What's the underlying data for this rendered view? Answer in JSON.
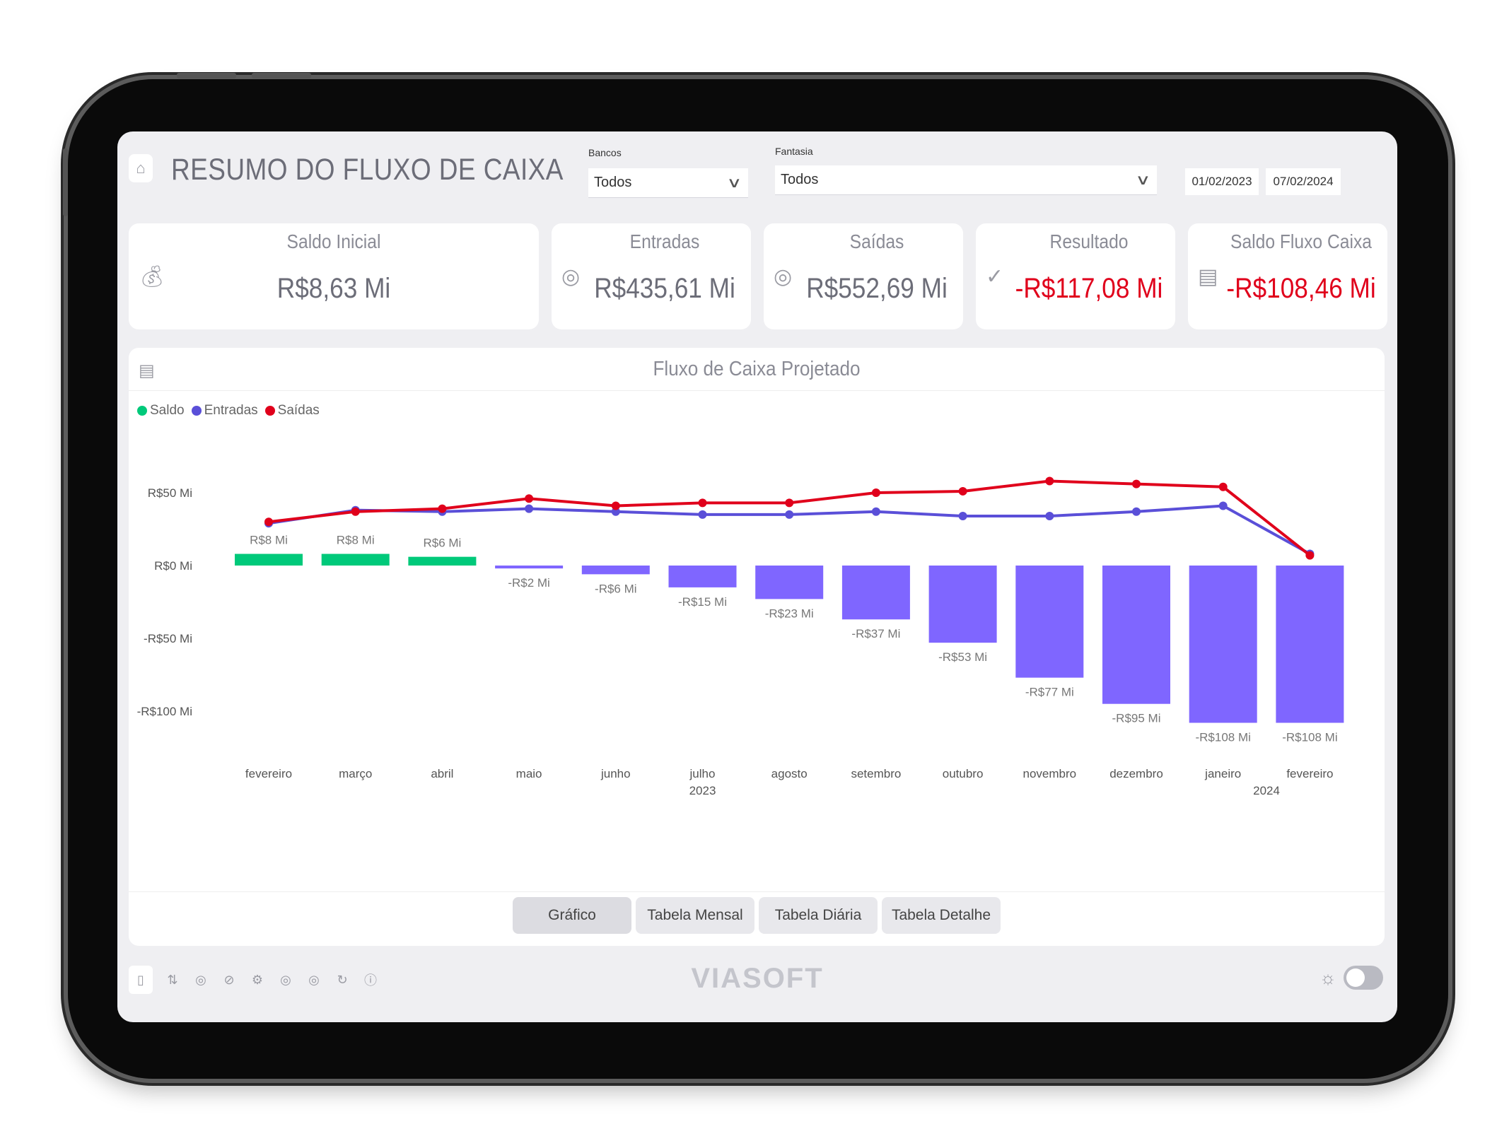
{
  "header": {
    "title": "RESUMO DO FLUXO DE CAIXA",
    "filters": {
      "bancos_label": "Bancos",
      "bancos_value": "Todos",
      "fantasia_label": "Fantasia",
      "fantasia_value": "Todos",
      "date_start": "01/02/2023",
      "date_end": "07/02/2024"
    }
  },
  "kpis": [
    {
      "title": "Saldo Inicial",
      "value": "R$8,63 Mi",
      "icon": "money-bag-icon"
    },
    {
      "title": "Entradas",
      "value": "R$435,61 Mi",
      "icon": "coins-in-icon"
    },
    {
      "title": "Saídas",
      "value": "R$552,69 Mi",
      "icon": "coins-out-icon"
    },
    {
      "title": "Resultado",
      "value": "-R$117,08 Mi",
      "icon": "check-circle-icon"
    },
    {
      "title": "Saldo Fluxo Caixa",
      "value": "-R$108,46 Mi",
      "icon": "safe-icon"
    }
  ],
  "chart": {
    "title": "Fluxo de Caixa Projetado",
    "legend": [
      "Saldo",
      "Entradas",
      "Saídas"
    ],
    "colors": {
      "saldo_pos": "#00c97a",
      "saldo_neg": "#7f66ff",
      "entradas": "#5a4fd8",
      "saidas": "#e0001b"
    },
    "y_tick_labels": [
      "R$50 Mi",
      "R$0 Mi",
      "-R$50 Mi",
      "-R$100 Mi"
    ],
    "year_labels": [
      "2023",
      "2024"
    ]
  },
  "chart_data": {
    "type": "bar",
    "categories": [
      "fevereiro",
      "março",
      "abril",
      "maio",
      "junho",
      "julho",
      "agosto",
      "setembro",
      "outubro",
      "novembro",
      "dezembro",
      "janeiro",
      "fevereiro"
    ],
    "ylim": [
      -120,
      60
    ],
    "y_ticks": [
      50,
      0,
      -50,
      -100
    ],
    "series": [
      {
        "name": "Saldo",
        "type": "bar",
        "values": [
          8,
          8,
          6,
          -2,
          -6,
          -15,
          -23,
          -37,
          -53,
          -77,
          -95,
          -108,
          -108
        ],
        "labels": [
          "R$8 Mi",
          "R$8 Mi",
          "R$6 Mi",
          "-R$2 Mi",
          "-R$6 Mi",
          "-R$15 Mi",
          "-R$23 Mi",
          "-R$37 Mi",
          "-R$53 Mi",
          "-R$77 Mi",
          "-R$95 Mi",
          "-R$108 Mi",
          "-R$108 Mi"
        ]
      },
      {
        "name": "Entradas",
        "type": "line",
        "values": [
          29,
          38,
          37,
          39,
          37,
          35,
          35,
          37,
          34,
          34,
          37,
          41,
          8
        ]
      },
      {
        "name": "Saídas",
        "type": "line",
        "values": [
          30,
          37,
          39,
          46,
          41,
          43,
          43,
          50,
          51,
          58,
          56,
          54,
          7
        ]
      }
    ]
  },
  "tabs": [
    {
      "label": "Gráfico",
      "active": true
    },
    {
      "label": "Tabela Mensal"
    },
    {
      "label": "Tabela Diária"
    },
    {
      "label": "Tabela Detalhe"
    }
  ],
  "footer": {
    "logo": "VIASOFT",
    "nav_icons": [
      "summary-icon",
      "transfer-icon",
      "coins-icon",
      "link-icon",
      "settings-coins-icon",
      "coins-in-icon",
      "coins-out-icon",
      "refresh-coins-icon",
      "info-icon"
    ]
  }
}
